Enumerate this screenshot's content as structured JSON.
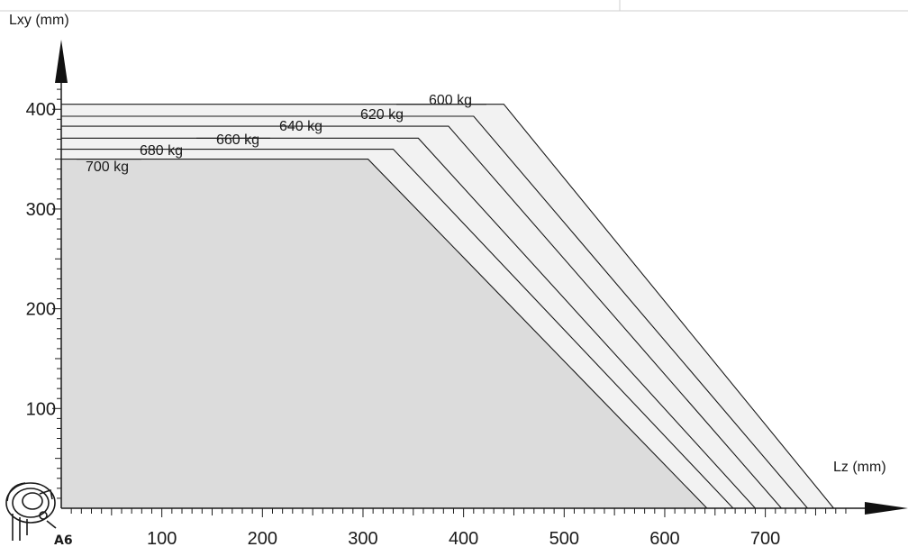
{
  "chart_data": {
    "type": "area",
    "title": "",
    "xlabel": "Lz (mm)",
    "ylabel": "Lxy (mm)",
    "xlim": [
      0,
      780
    ],
    "ylim": [
      0,
      450
    ],
    "xticks": [
      100,
      200,
      300,
      400,
      500,
      600,
      700
    ],
    "yticks": [
      100,
      200,
      300,
      400
    ],
    "xtick_labels": [
      "100",
      "200",
      "300",
      "400",
      "500",
      "600",
      "700"
    ],
    "ytick_labels": [
      "100",
      "200",
      "300",
      "400"
    ],
    "flange_label": "A6",
    "grid": false,
    "series": [
      {
        "name": "600 kg",
        "x": [
          0,
          440,
          768
        ],
        "y": [
          405,
          405,
          0
        ]
      },
      {
        "name": "620 kg",
        "x": [
          0,
          410,
          742
        ],
        "y": [
          393,
          393,
          0
        ]
      },
      {
        "name": "640 kg",
        "x": [
          0,
          385,
          716
        ],
        "y": [
          383,
          383,
          0
        ]
      },
      {
        "name": "660 kg",
        "x": [
          0,
          355,
          690
        ],
        "y": [
          371,
          371,
          0
        ]
      },
      {
        "name": "680 kg",
        "x": [
          0,
          330,
          668
        ],
        "y": [
          360,
          360,
          0
        ]
      },
      {
        "name": "700 kg",
        "x": [
          0,
          305,
          642
        ],
        "y": [
          350,
          350,
          0
        ]
      }
    ]
  },
  "colors": {
    "outer_fill": "#f2f2f2",
    "inner_fill": "#dcdcdc",
    "line": "#1a1a1a",
    "background": "#ffffff"
  }
}
